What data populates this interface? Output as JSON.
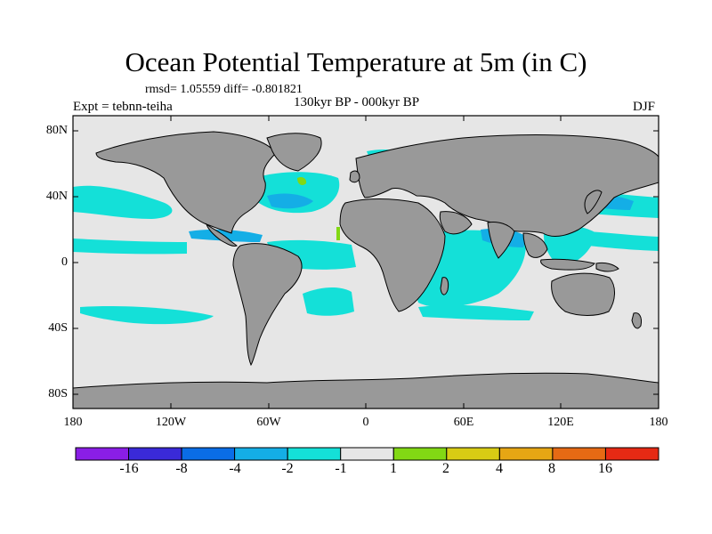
{
  "title": "Ocean Potential Temperature at 5m (in C)",
  "stats": "rmsd= 1.05559 diff= -0.801821",
  "experiment": "Expt = tebnn-teiha",
  "period": "130kyr BP - 000kyr BP",
  "season": "DJF",
  "lat_labels": [
    "80N",
    "40N",
    "0",
    "40S",
    "80S"
  ],
  "lon_labels": [
    "180",
    "120W",
    "60W",
    "0",
    "60E",
    "120E",
    "180"
  ],
  "colorbar": {
    "colors": [
      "#8a1ee6",
      "#3a2ad8",
      "#0a6de6",
      "#14aee6",
      "#14e0d8",
      "#e6e6e6",
      "#82d814",
      "#d8cc14",
      "#e6a614",
      "#e66a14",
      "#e62a14"
    ],
    "labels": [
      "-16",
      "-8",
      "-4",
      "-2",
      "-1",
      "1",
      "2",
      "4",
      "8",
      "16"
    ]
  },
  "colors": {
    "land": "#999999",
    "ocean_neutral": "#e6e6e6",
    "cool_anomaly": "#14e0d8",
    "cooler_anomaly": "#14aee6",
    "warm_anomaly": "#82d814"
  }
}
